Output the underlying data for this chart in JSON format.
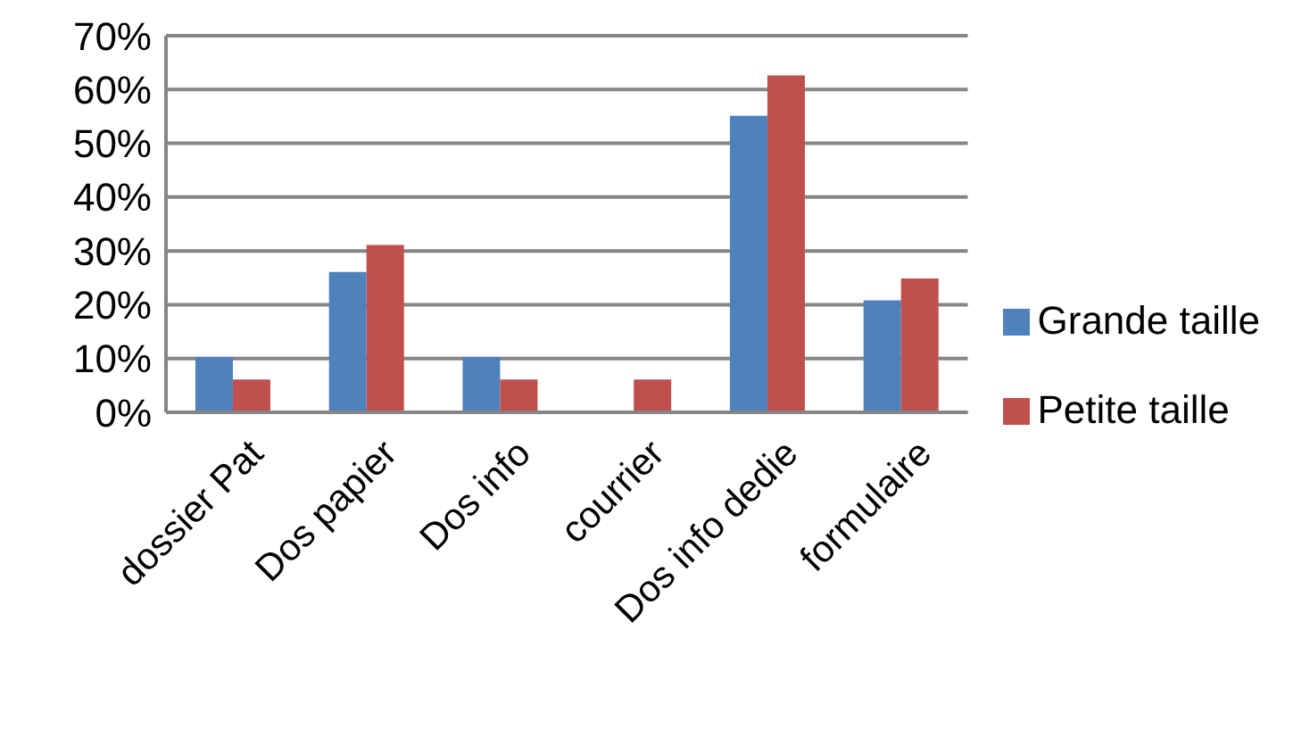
{
  "chart_data": {
    "type": "bar",
    "categories": [
      "dossier Pat",
      "Dos papier",
      "Dos info",
      "courrier",
      "Dos info dedie",
      "formulaire"
    ],
    "series": [
      {
        "name": "Grande taille",
        "color": "#4f81bd",
        "values": [
          10.3,
          26.1,
          10.3,
          0,
          55.1,
          20.8
        ]
      },
      {
        "name": "Petite taille",
        "color": "#c0504d",
        "values": [
          6.1,
          31.1,
          6.1,
          6.1,
          62.6,
          24.9
        ]
      }
    ],
    "ylim": [
      0,
      70
    ],
    "yticks": [
      {
        "value": 0,
        "label": "0%"
      },
      {
        "value": 10,
        "label": "10%"
      },
      {
        "value": 20,
        "label": "20%"
      },
      {
        "value": 30,
        "label": "30%"
      },
      {
        "value": 40,
        "label": "40%"
      },
      {
        "value": 50,
        "label": "50%"
      },
      {
        "value": 60,
        "label": "60%"
      },
      {
        "value": 70,
        "label": "70%"
      }
    ],
    "grid": "y",
    "legend": "right"
  }
}
